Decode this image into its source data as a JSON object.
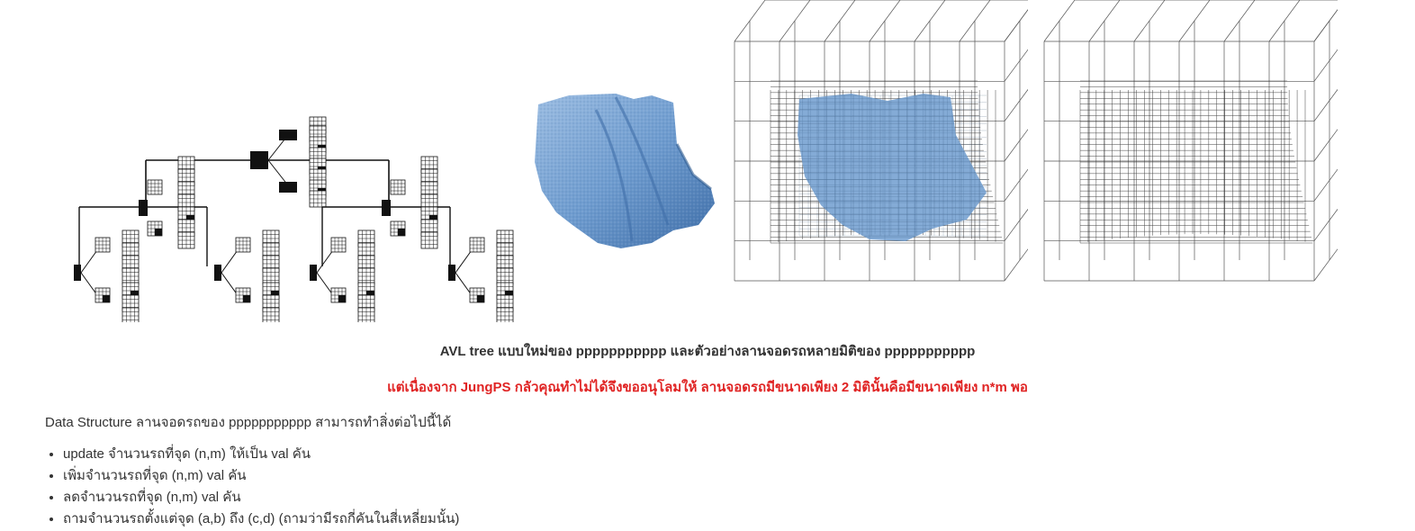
{
  "figure": {
    "parts": [
      "quadtree-diagram",
      "blue-shape-render",
      "octree-grid-with-shape",
      "octree-grid"
    ],
    "shape_color": "#6f9ccf"
  },
  "caption": "AVL tree แบบใหม่ของ ppppppppppp และตัวอย่างลานจอดรถหลายมิติของ ppppppppppp",
  "notice": {
    "text": "แต่เนื่องจาก JungPS กลัวคุณทำไม่ได้จึงขออนุโลมให้ ลานจอดรถมีขนาดเพียง 2 มิตินั้นคือมีขนาดเพียง n*m พอ",
    "color": "#e02424"
  },
  "intro": "Data Structure ลานจอดรถของ ppppppppppp สามารถทำสิ่งต่อไปนี้ได้",
  "operations": [
    "update จำนวนรถที่จุด (n,m) ให้เป็น val คัน",
    "เพิ่มจำนวนรถที่จุด (n,m) val คัน",
    "ลดจำนวนรถที่จุด (n,m) val คัน",
    "ถามจำนวนรถตั้งแต่จุด (a,b) ถึง (c,d) (ถามว่ามีรถกี่คันในสี่เหลี่ยมนั้น)"
  ]
}
